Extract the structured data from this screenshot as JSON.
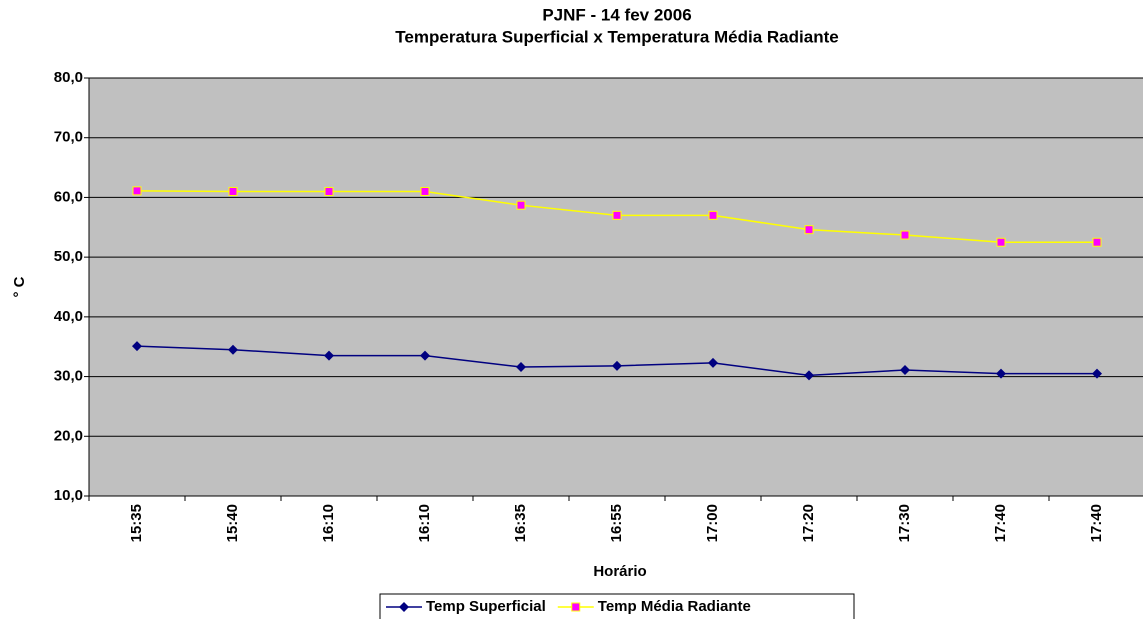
{
  "chart_data": {
    "type": "line",
    "title": "PJNF - 14 fev 2006",
    "subtitle": "Temperatura Superficial x Temperatura Média Radiante",
    "x_label": "Horário",
    "y_label": "° C",
    "categories": [
      "15:35",
      "15:40",
      "16:10",
      "16:10",
      "16:35",
      "16:55",
      "17:00",
      "17:20",
      "17:30",
      "17:40",
      "17:40"
    ],
    "series": [
      {
        "name": "Temp Superficial",
        "color": "#000080",
        "marker_color": "#000080",
        "marker": "diamond",
        "values": [
          35.1,
          34.5,
          33.5,
          33.5,
          31.6,
          31.8,
          32.3,
          30.2,
          31.1,
          30.5,
          30.5
        ]
      },
      {
        "name": "Temp Média Radiante",
        "color": "#ffff00",
        "marker_color": "#ff00ff",
        "marker": "square",
        "values": [
          61.1,
          61.0,
          61.0,
          61.0,
          58.7,
          57.0,
          57.0,
          54.6,
          53.7,
          52.5,
          52.5
        ]
      }
    ],
    "ylim": [
      10,
      80
    ],
    "yticks": [
      {
        "value": 10,
        "label": "10,0"
      },
      {
        "value": 20,
        "label": "20,0"
      },
      {
        "value": 30,
        "label": "30,0"
      },
      {
        "value": 40,
        "label": "40,0"
      },
      {
        "value": 50,
        "label": "50,0"
      },
      {
        "value": 60,
        "label": "60,0"
      },
      {
        "value": 70,
        "label": "70,0"
      },
      {
        "value": 80,
        "label": "80,0"
      }
    ],
    "grid": true,
    "legend": "bottom",
    "plot_background": "#c0c0c0"
  }
}
